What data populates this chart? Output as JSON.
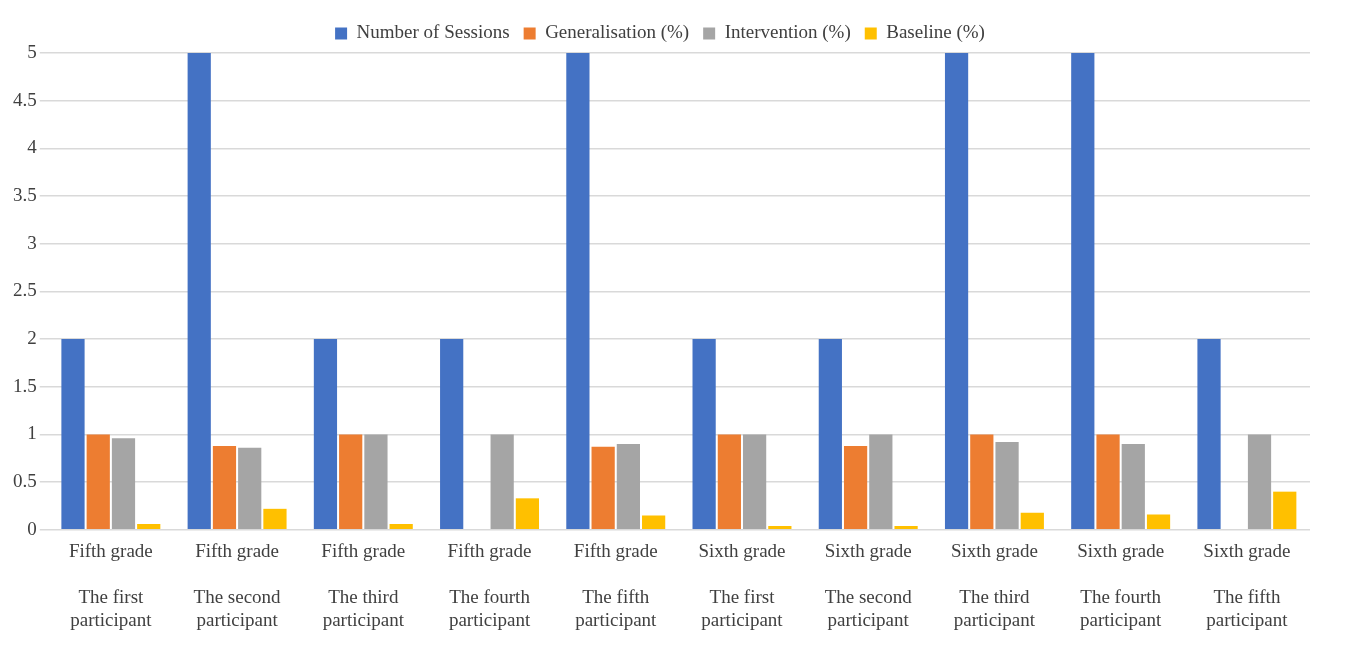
{
  "chart_data": {
    "type": "bar",
    "categories": [
      "Fifth grade\nThe first participant",
      "Fifth grade\nThe second participant",
      "Fifth grade\nThe third participant",
      "Fifth grade\nThe fourth participant",
      "Fifth grade\nThe fifth participant",
      "Sixth grade\nThe first participant",
      "Sixth grade\nThe second participant",
      "Sixth grade\nThe third participant",
      "Sixth grade\nThe fourth participant",
      "Sixth grade\nThe fifth participant"
    ],
    "series": [
      {
        "name": "Number of Sessions",
        "color": "#4472c4",
        "values": [
          2,
          5,
          2,
          2,
          5,
          2,
          2,
          5,
          5,
          2
        ]
      },
      {
        "name": "Generalisation (%)",
        "color": "#ed7d31",
        "values": [
          1,
          0.88,
          1,
          0,
          0.87,
          1,
          0.88,
          1,
          1,
          0
        ]
      },
      {
        "name": "Intervention (%)",
        "color": "#a5a5a5",
        "values": [
          0.96,
          0.86,
          1,
          1,
          0.9,
          1,
          1,
          0.92,
          0.9,
          1
        ]
      },
      {
        "name": "Baseline (%)",
        "color": "#ffc000",
        "values": [
          0.06,
          0.22,
          0.06,
          0.33,
          0.15,
          0.04,
          0.04,
          0.18,
          0.16,
          0.4
        ]
      }
    ],
    "ylim": [
      0,
      5
    ],
    "yticks": [
      0,
      0.5,
      1,
      1.5,
      2,
      2.5,
      3,
      3.5,
      4,
      4.5,
      5
    ],
    "grid": "y",
    "legend": "top"
  }
}
